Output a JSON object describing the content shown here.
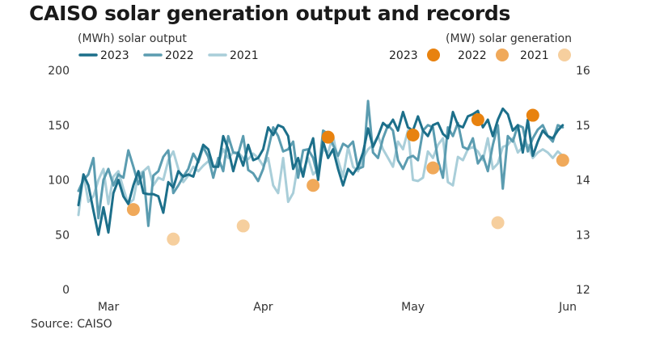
{
  "title": "CAISO solar generation output and records",
  "source": "Source: CAISO",
  "chart_data": {
    "type": "line",
    "left_axis": {
      "label": "(MWh) solar output",
      "range": [
        0,
        200
      ],
      "ticks": [
        0,
        50,
        100,
        150,
        200
      ]
    },
    "right_axis": {
      "label": "(MW) solar generation",
      "range": [
        12,
        16
      ],
      "ticks": [
        12,
        13,
        14,
        15,
        16
      ]
    },
    "x_axis": {
      "range": [
        "2024-02-24",
        "2024-06-01"
      ],
      "ticks": [
        {
          "date": "2024-03-01",
          "label": "Mar"
        },
        {
          "date": "2024-04-01",
          "label": "Apr"
        },
        {
          "date": "2024-05-01",
          "label": "May"
        },
        {
          "date": "2024-06-01",
          "label": "Jun"
        }
      ]
    },
    "grid": false,
    "series": [
      {
        "name": "2023",
        "axis": "left",
        "color": "#1c6f8a",
        "x_start": "2024-02-24",
        "values": [
          77,
          105,
          95,
          72,
          50,
          75,
          52,
          88,
          100,
          85,
          78,
          95,
          108,
          88,
          87,
          87,
          85,
          70,
          98,
          93,
          108,
          103,
          105,
          103,
          118,
          132,
          128,
          112,
          112,
          140,
          128,
          108,
          125,
          113,
          132,
          118,
          120,
          128,
          148,
          141,
          150,
          148,
          140,
          110,
          120,
          103,
          125,
          138,
          100,
          135,
          120,
          128,
          110,
          95,
          110,
          105,
          112,
          125,
          147,
          130,
          140,
          152,
          148,
          155,
          145,
          162,
          148,
          145,
          158,
          145,
          140,
          150,
          152,
          142,
          138,
          162,
          150,
          148,
          158,
          160,
          163,
          148,
          155,
          140,
          155,
          165,
          160,
          145,
          150,
          125,
          155,
          122,
          135,
          145,
          140,
          138,
          145,
          150
        ]
      },
      {
        "name": "2022",
        "axis": "left",
        "color": "#5b9cb0",
        "x_start": "2024-02-24",
        "values": [
          90,
          100,
          105,
          120,
          65,
          100,
          110,
          95,
          105,
          102,
          127,
          112,
          96,
          107,
          58,
          104,
          108,
          121,
          127,
          88,
          95,
          103,
          110,
          124,
          116,
          130,
          121,
          102,
          120,
          108,
          140,
          125,
          124,
          140,
          109,
          106,
          99,
          110,
          128,
          148,
          140,
          126,
          128,
          135,
          102,
          127,
          128,
          120,
          102,
          145,
          142,
          132,
          122,
          133,
          130,
          135,
          110,
          112,
          172,
          125,
          120,
          138,
          150,
          145,
          118,
          110,
          120,
          122,
          118,
          145,
          150,
          148,
          118,
          102,
          148,
          140,
          152,
          130,
          128,
          138,
          115,
          122,
          108,
          132,
          150,
          92,
          140,
          135,
          150,
          148,
          126,
          138,
          146,
          150,
          140,
          135,
          150,
          148
        ]
      },
      {
        "name": "2021",
        "axis": "left",
        "color": "#a9ced9",
        "x_start": "2024-02-24",
        "values": [
          68,
          105,
          80,
          85,
          100,
          110,
          78,
          103,
          108,
          92,
          78,
          82,
          105,
          108,
          112,
          95,
          102,
          100,
          118,
          126,
          110,
          98,
          104,
          112,
          108,
          113,
          117,
          112,
          115,
          128,
          120,
          125,
          125,
          120,
          119,
          124,
          120,
          113,
          120,
          95,
          88,
          120,
          80,
          88,
          115,
          108,
          120,
          105,
          110,
          128,
          125,
          140,
          118,
          103,
          130,
          112,
          108,
          120,
          128,
          132,
          140,
          128,
          120,
          112,
          135,
          128,
          145,
          100,
          99,
          102,
          126,
          120,
          132,
          138,
          98,
          95,
          121,
          118,
          128,
          130,
          126,
          118,
          138,
          110,
          115,
          130,
          132,
          138,
          125,
          130,
          132,
          120,
          125,
          128,
          125,
          120,
          126,
          122
        ]
      }
    ],
    "records": [
      {
        "name": "2023",
        "axis": "right",
        "color": "#e8820f",
        "points": [
          {
            "date": "2024-04-14",
            "value": 14.78
          },
          {
            "date": "2024-05-01",
            "value": 14.82
          },
          {
            "date": "2024-05-14",
            "value": 15.1
          },
          {
            "date": "2024-05-25",
            "value": 15.18
          }
        ]
      },
      {
        "name": "2022",
        "axis": "right",
        "color": "#f0a95a",
        "points": [
          {
            "date": "2024-03-06",
            "value": 13.46
          },
          {
            "date": "2024-04-11",
            "value": 13.9
          },
          {
            "date": "2024-05-05",
            "value": 14.22
          },
          {
            "date": "2024-05-31",
            "value": 14.36
          }
        ]
      },
      {
        "name": "2021",
        "axis": "right",
        "color": "#f6cf9e",
        "points": [
          {
            "date": "2024-03-14",
            "value": 12.92
          },
          {
            "date": "2024-03-28",
            "value": 13.16
          },
          {
            "date": "2024-05-18",
            "value": 13.22
          }
        ]
      }
    ],
    "legend_placement": "top"
  }
}
